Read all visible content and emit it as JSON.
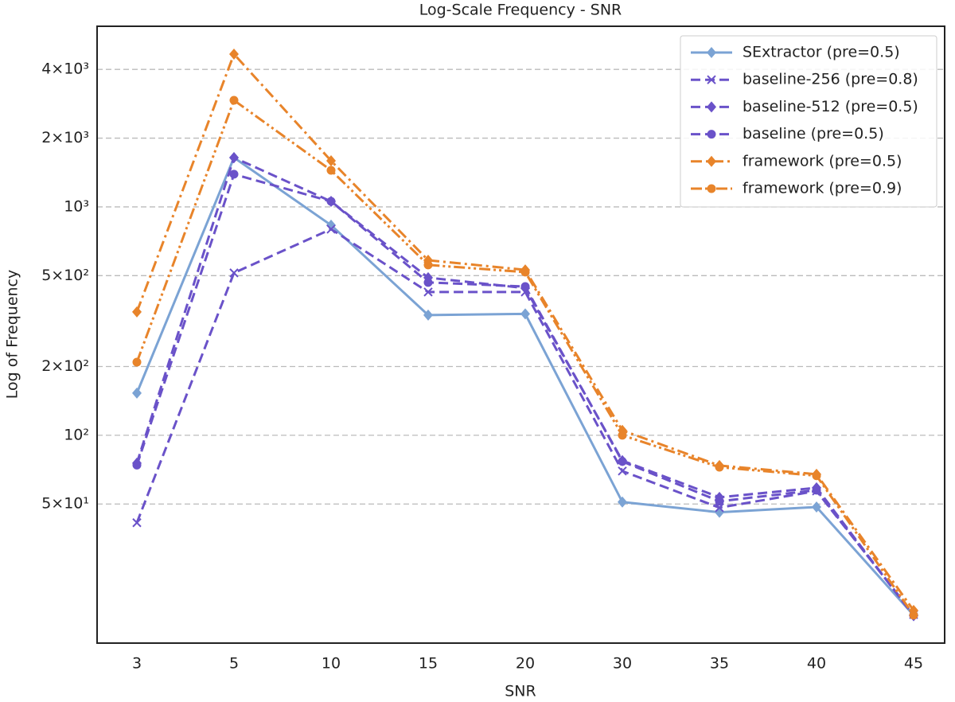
{
  "chart_data": {
    "type": "line",
    "title": "Log-Scale Frequency - SNR",
    "x_label": "SNR",
    "y_label": "Log of Frequency",
    "categories": [
      "3",
      "5",
      "10",
      "15",
      "20",
      "30",
      "35",
      "40",
      "45"
    ],
    "y_scale": "log",
    "grid": true,
    "legend": "upper right",
    "ylim": [
      12.3,
      6180
    ],
    "yticks": [
      {
        "value": 50,
        "label": "5×10¹"
      },
      {
        "value": 100,
        "label": "10²"
      },
      {
        "value": 200,
        "label": "2×10²"
      },
      {
        "value": 500,
        "label": "5×10²"
      },
      {
        "value": 1000,
        "label": "10³"
      },
      {
        "value": 2000,
        "label": "2×10³"
      },
      {
        "value": 4000,
        "label": "4×10³"
      }
    ],
    "series": [
      {
        "name": "SExtractor (pre=0.5)",
        "color": "#7ba3d4",
        "linestyle": "solid",
        "marker": "diamond",
        "values": [
          153,
          1644,
          832,
          336,
          340,
          51,
          46,
          48.5,
          16.3
        ]
      },
      {
        "name": "baseline-256 (pre=0.8)",
        "color": "#6a52c9",
        "linestyle": "dashed",
        "marker": "x",
        "values": [
          41.4,
          514,
          799,
          424,
          424,
          69.7,
          48.2,
          57,
          16.4
        ]
      },
      {
        "name": "baseline-512 (pre=0.5)",
        "color": "#6a52c9",
        "linestyle": "dashed",
        "marker": "diamond",
        "values": [
          75.5,
          1644,
          1057,
          490,
          441,
          77.4,
          53.5,
          58.9,
          16.2
        ]
      },
      {
        "name": "baseline (pre=0.5)",
        "color": "#6a52c9",
        "linestyle": "dashed",
        "marker": "circle",
        "values": [
          74,
          1390,
          1057,
          467,
          448,
          76.8,
          51.4,
          57.5,
          16.3
        ]
      },
      {
        "name": "framework (pre=0.5)",
        "color": "#e8842a",
        "linestyle": "dashdot",
        "marker": "diamond",
        "values": [
          347,
          4667,
          1592,
          584,
          530,
          105,
          73.7,
          67.5,
          17.1
        ]
      },
      {
        "name": "framework (pre=0.9)",
        "color": "#e8842a",
        "linestyle": "dashdotdot",
        "marker": "circle",
        "values": [
          209,
          2930,
          1446,
          557,
          518,
          100,
          72.5,
          66.5,
          16.3
        ]
      }
    ]
  }
}
